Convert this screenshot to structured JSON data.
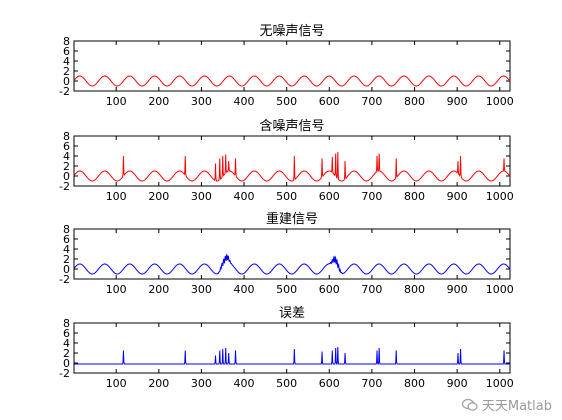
{
  "chart_data": [
    {
      "type": "line",
      "title": "无噪声信号",
      "color": "#ff0000",
      "xlim": [
        1,
        1024
      ],
      "ylim": [
        -2,
        8
      ],
      "xticks": [
        100,
        200,
        300,
        400,
        500,
        600,
        700,
        800,
        900,
        1000
      ],
      "yticks": [
        -2,
        0,
        2,
        4,
        6,
        8
      ],
      "series": [
        {
          "signal": "sine",
          "amplitude": 1,
          "period": 58.5,
          "offset": 0,
          "spikes": []
        }
      ]
    },
    {
      "type": "line",
      "title": "含噪声信号",
      "color": "#ff0000",
      "xlim": [
        1,
        1024
      ],
      "ylim": [
        -2,
        8
      ],
      "xticks": [
        100,
        200,
        300,
        400,
        500,
        600,
        700,
        800,
        900,
        1000
      ],
      "yticks": [
        -2,
        0,
        2,
        4,
        6,
        8
      ],
      "series": [
        {
          "signal": "sine",
          "amplitude": 1,
          "period": 58.5,
          "offset": 0,
          "spikes": [
            [
              117,
              4
            ],
            [
              262,
              4
            ],
            [
              333,
              2.5
            ],
            [
              343,
              3.5
            ],
            [
              350,
              4
            ],
            [
              357,
              4.3
            ],
            [
              364,
              3
            ],
            [
              380,
              3.5
            ],
            [
              518,
              4
            ],
            [
              583,
              3.5
            ],
            [
              607,
              3.8
            ],
            [
              615,
              4.5
            ],
            [
              620,
              4.8
            ],
            [
              637,
              3
            ],
            [
              712,
              4
            ],
            [
              717,
              4.5
            ],
            [
              757,
              3.5
            ],
            [
              902,
              3
            ],
            [
              908,
              4
            ],
            [
              1010,
              3.5
            ]
          ]
        }
      ]
    },
    {
      "type": "line",
      "title": "重建信号",
      "color": "#0000ff",
      "xlim": [
        1,
        1024
      ],
      "ylim": [
        -2,
        8
      ],
      "xticks": [
        100,
        200,
        300,
        400,
        500,
        600,
        700,
        800,
        900,
        1000
      ],
      "yticks": [
        -2,
        0,
        2,
        4,
        6,
        8
      ],
      "series": [
        {
          "signal": "sine",
          "amplitude": 1,
          "period": 58.5,
          "offset": 0,
          "bumps": [
            [
              350,
              1.5
            ],
            [
              360,
              2.0
            ],
            [
              612,
              2.0
            ],
            [
              620,
              1.5
            ]
          ],
          "spikes": []
        }
      ]
    },
    {
      "type": "line",
      "title": "误差",
      "color": "#0000ff",
      "xlim": [
        1,
        1024
      ],
      "ylim": [
        -2,
        8
      ],
      "xticks": [
        100,
        200,
        300,
        400,
        500,
        600,
        700,
        800,
        900,
        1000
      ],
      "yticks": [
        -2,
        0,
        2,
        4,
        6,
        8
      ],
      "series": [
        {
          "signal": "flat",
          "baseline": -0.2,
          "spikes": [
            [
              117,
              2.5
            ],
            [
              262,
              2.5
            ],
            [
              333,
              1.5
            ],
            [
              343,
              2.5
            ],
            [
              350,
              2.8
            ],
            [
              357,
              3
            ],
            [
              364,
              2
            ],
            [
              380,
              2.5
            ],
            [
              518,
              2.8
            ],
            [
              583,
              2.3
            ],
            [
              607,
              2.5
            ],
            [
              615,
              3
            ],
            [
              620,
              3.2
            ],
            [
              637,
              2
            ],
            [
              712,
              2.5
            ],
            [
              717,
              3
            ],
            [
              757,
              2.5
            ],
            [
              902,
              2
            ],
            [
              908,
              2.8
            ],
            [
              1010,
              2.5
            ]
          ]
        }
      ]
    }
  ],
  "watermark": {
    "text": "天天Matlab",
    "icon": "wechat-icon"
  }
}
